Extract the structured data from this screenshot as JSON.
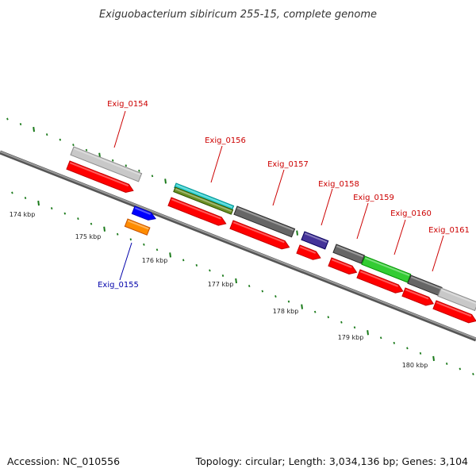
{
  "header": {
    "title": "Exiguobacterium sibiricum 255-15, complete genome"
  },
  "footer": {
    "accession": "Accession: NC_010556",
    "summary": "Topology: circular; Length: 3,034,136 bp; Genes: 3,104"
  },
  "colors": {
    "backbone": "#888888",
    "tick": "#1a7a1a",
    "forward_label": "#cc0000",
    "reverse_label": "#0000aa",
    "cds_red": "#ff0000",
    "gene_gray": "#666666",
    "gene_lightgray": "#c8c8c8",
    "gene_cyan": "#22cccc",
    "gene_olive": "#6b8e23",
    "gene_slateblue": "#443399",
    "gene_green": "#33cc33",
    "gene_blue": "#0000ff",
    "gene_orange": "#ff8c00"
  },
  "scale_labels": [
    "174 kbp",
    "175 kbp",
    "176 kbp",
    "177 kbp",
    "178 kbp",
    "179 kbp",
    "180 kbp"
  ],
  "gene_labels": [
    {
      "id": "Exig_0154",
      "strand": "forward"
    },
    {
      "id": "Exig_0155",
      "strand": "reverse"
    },
    {
      "id": "Exig_0156",
      "strand": "forward"
    },
    {
      "id": "Exig_0157",
      "strand": "forward"
    },
    {
      "id": "Exig_0158",
      "strand": "forward"
    },
    {
      "id": "Exig_0159",
      "strand": "forward"
    },
    {
      "id": "Exig_0160",
      "strand": "forward"
    },
    {
      "id": "Exig_0161",
      "strand": "forward"
    }
  ]
}
